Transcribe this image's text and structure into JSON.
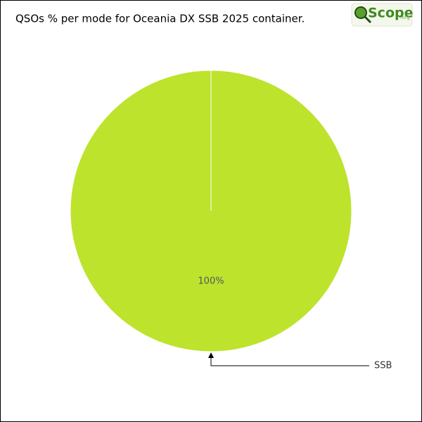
{
  "chart_data": {
    "type": "pie",
    "title": "QSOs % per mode for Oceania DX SSB 2025 container.",
    "logo": "Scope",
    "logo_suffix": ".org",
    "categories": [
      "SSB"
    ],
    "values": [
      100
    ],
    "value_labels": [
      "100%"
    ],
    "colors": [
      "#bde32d"
    ]
  }
}
